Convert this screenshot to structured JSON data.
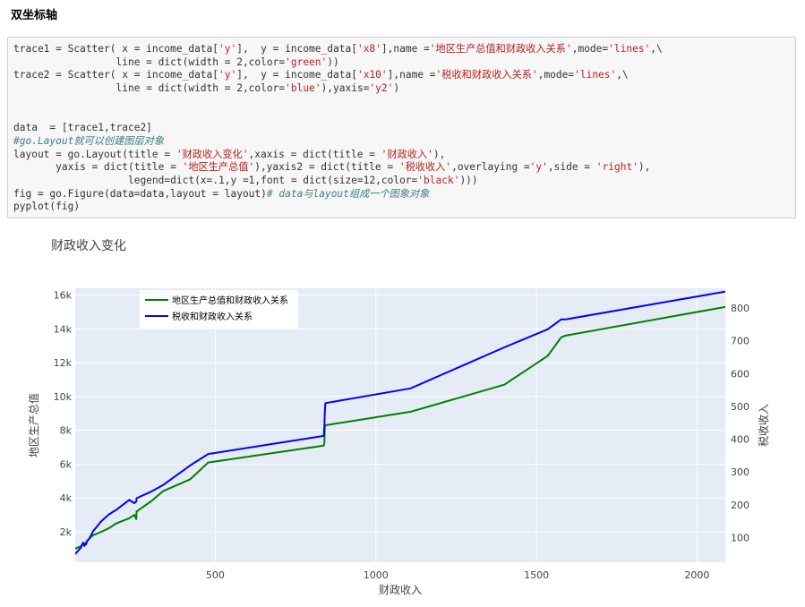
{
  "heading": "双坐标轴",
  "code": {
    "lines": [
      [
        {
          "t": "trace1 = Scatter( x = income_data[",
          "c": "var"
        },
        {
          "t": "'y'",
          "c": "str"
        },
        {
          "t": "],  y = income_data[",
          "c": "var"
        },
        {
          "t": "'x8'",
          "c": "str"
        },
        {
          "t": "],name =",
          "c": "var"
        },
        {
          "t": "'地区生产总值和财政收入关系'",
          "c": "str"
        },
        {
          "t": ",mode=",
          "c": "var"
        },
        {
          "t": "'lines'",
          "c": "str"
        },
        {
          "t": ",\\",
          "c": "var"
        }
      ],
      [
        {
          "t": "                 line = dict(width = 2,color=",
          "c": "var"
        },
        {
          "t": "'green'",
          "c": "str"
        },
        {
          "t": "))",
          "c": "var"
        }
      ],
      [
        {
          "t": "trace2 = Scatter( x = income_data[",
          "c": "var"
        },
        {
          "t": "'y'",
          "c": "str"
        },
        {
          "t": "],  y = income_data[",
          "c": "var"
        },
        {
          "t": "'x10'",
          "c": "str"
        },
        {
          "t": "],name =",
          "c": "var"
        },
        {
          "t": "'税收和财政收入关系'",
          "c": "str"
        },
        {
          "t": ",mode=",
          "c": "var"
        },
        {
          "t": "'lines'",
          "c": "str"
        },
        {
          "t": ",\\",
          "c": "var"
        }
      ],
      [
        {
          "t": "                 line = dict(width = 2,color=",
          "c": "var"
        },
        {
          "t": "'blue'",
          "c": "str"
        },
        {
          "t": "),yaxis=",
          "c": "var"
        },
        {
          "t": "'y2'",
          "c": "str"
        },
        {
          "t": ")",
          "c": "var"
        }
      ],
      [],
      [],
      [
        {
          "t": "data  = [trace1,trace2]",
          "c": "var"
        }
      ],
      [
        {
          "t": "#go.Layout就可以创建图层对象",
          "c": "comment"
        }
      ],
      [
        {
          "t": "layout = go.Layout(title = ",
          "c": "var"
        },
        {
          "t": "'财政收入变化'",
          "c": "str"
        },
        {
          "t": ",xaxis = dict(title = ",
          "c": "var"
        },
        {
          "t": "'财政收入'",
          "c": "str"
        },
        {
          "t": "),",
          "c": "var"
        }
      ],
      [
        {
          "t": "       yaxis = dict(title = ",
          "c": "var"
        },
        {
          "t": "'地区生产总值'",
          "c": "str"
        },
        {
          "t": "),yaxis2 = dict(title = ",
          "c": "var"
        },
        {
          "t": "'税收收入'",
          "c": "str"
        },
        {
          "t": ",overlaying =",
          "c": "var"
        },
        {
          "t": "'y'",
          "c": "str"
        },
        {
          "t": ",side = ",
          "c": "var"
        },
        {
          "t": "'right'",
          "c": "str"
        },
        {
          "t": "),",
          "c": "var"
        }
      ],
      [
        {
          "t": "                   legend=dict(x=.1,y =1,font = dict(size=12,color=",
          "c": "var"
        },
        {
          "t": "'black'",
          "c": "str"
        },
        {
          "t": ")))",
          "c": "var"
        }
      ],
      [
        {
          "t": "fig = go.Figure(data=data,layout = layout)",
          "c": "var"
        },
        {
          "t": "# data与layout组成一个图象对象",
          "c": "comment"
        }
      ],
      [
        {
          "t": "pyplot(fig)",
          "c": "var"
        }
      ]
    ]
  },
  "chart_data": {
    "type": "line",
    "title": "财政收入变化",
    "xlabel": "财政收入",
    "ylabel": "地区生产总值",
    "y2label": "税收收入",
    "xlim": [
      64,
      2088
    ],
    "ylim": [
      200,
      16400
    ],
    "y2lim": [
      25,
      860
    ],
    "xticks": [
      500,
      1000,
      1500,
      2000
    ],
    "yticks": [
      2000,
      4000,
      6000,
      8000,
      10000,
      12000,
      14000,
      16000
    ],
    "yticklabels": [
      "2k",
      "4k",
      "6k",
      "8k",
      "10k",
      "12k",
      "14k",
      "16k"
    ],
    "y2ticks": [
      100,
      200,
      300,
      400,
      500,
      600,
      700,
      800
    ],
    "legend_position": "top-left",
    "series": [
      {
        "name": "地区生产总值和财政收入关系",
        "color": "#008000",
        "axis": "y",
        "x": [
          64,
          82,
          89,
          92,
          98,
          101,
          107,
          120,
          145,
          168,
          192,
          232,
          248,
          254,
          255,
          300,
          337,
          422,
          478,
          838,
          840,
          841,
          843,
          1108,
          1400,
          1535,
          1577,
          1590,
          2088
        ],
        "y": [
          1000,
          1150,
          1350,
          1250,
          1380,
          1450,
          1600,
          1800,
          2000,
          2200,
          2500,
          2800,
          3000,
          2750,
          3200,
          3800,
          4400,
          5100,
          6100,
          7100,
          7300,
          8200,
          8300,
          9100,
          10700,
          12400,
          13500,
          13600,
          15300
        ]
      },
      {
        "name": "税收和财政收入关系",
        "color": "#0000ff",
        "axis": "y2",
        "x": [
          64,
          82,
          89,
          92,
          98,
          101,
          107,
          120,
          145,
          168,
          192,
          232,
          248,
          254,
          255,
          300,
          337,
          422,
          478,
          838,
          840,
          841,
          843,
          1108,
          1400,
          1535,
          1577,
          1590,
          2088
        ],
        "y": [
          50,
          70,
          85,
          75,
          80,
          90,
          95,
          120,
          150,
          170,
          185,
          215,
          205,
          210,
          220,
          240,
          260,
          320,
          355,
          410,
          440,
          480,
          510,
          555,
          680,
          735,
          765,
          765,
          850
        ]
      }
    ]
  }
}
